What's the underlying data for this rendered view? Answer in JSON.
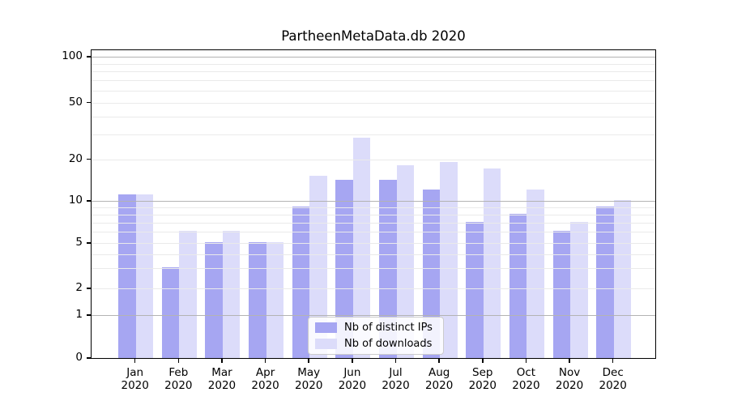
{
  "chart_data": {
    "type": "bar",
    "title": "PartheenMetaData.db 2020",
    "x_axis": {
      "months": [
        "Jan",
        "Feb",
        "Mar",
        "Apr",
        "May",
        "Jun",
        "Jul",
        "Aug",
        "Sep",
        "Oct",
        "Nov",
        "Dec"
      ],
      "year": "2020"
    },
    "series": [
      {
        "name": "Nb of distinct IPs",
        "color": "#a6a6f2",
        "values": [
          11,
          3,
          5,
          5,
          9,
          14,
          14,
          12,
          7,
          8,
          6,
          9
        ]
      },
      {
        "name": "Nb of downloads",
        "color": "#dcdcfa",
        "values": [
          11,
          6,
          6,
          5,
          15,
          28,
          18,
          19,
          17,
          12,
          7,
          10
        ]
      }
    ],
    "y_axis": {
      "scale": "symlog",
      "ticks": [
        0,
        1,
        2,
        5,
        10,
        20,
        50,
        100
      ],
      "lim": [
        0,
        112
      ]
    },
    "grid": {
      "major_lines": [
        1,
        10,
        100
      ],
      "minor_lines": [
        2,
        3,
        4,
        5,
        6,
        7,
        8,
        9,
        20,
        30,
        40,
        50,
        60,
        70,
        80,
        90
      ],
      "major_color": "#b3b3b3",
      "minor_color": "#eaeaea"
    },
    "legend": {
      "location": "lower center"
    }
  }
}
